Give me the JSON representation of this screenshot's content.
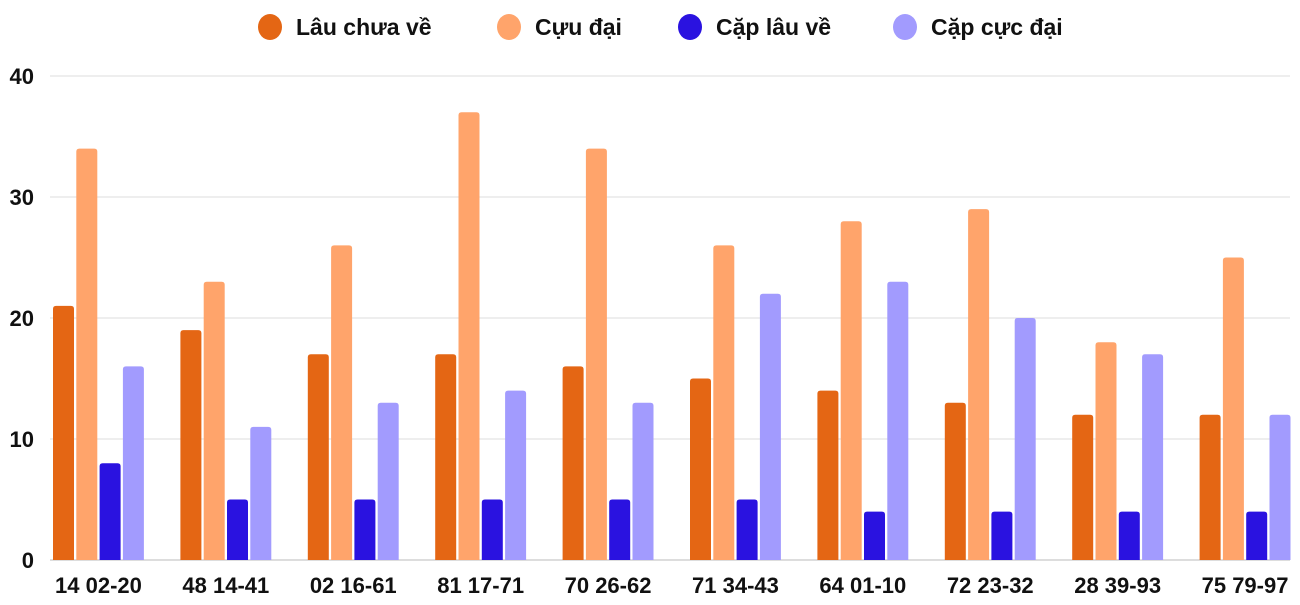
{
  "chart_data": {
    "type": "bar",
    "categories": [
      "14 02-20",
      "48 14-41",
      "02 16-61",
      "81 17-71",
      "70 26-62",
      "71 34-43",
      "64 01-10",
      "72 23-32",
      "28 39-93",
      "75 79-97"
    ],
    "series": [
      {
        "name": "Lâu chưa về",
        "color": "#E46614",
        "values": [
          21,
          19,
          17,
          17,
          16,
          15,
          14,
          13,
          12,
          12
        ]
      },
      {
        "name": "Cựu đại",
        "color": "#FFA46B",
        "values": [
          34,
          23,
          26,
          37,
          34,
          26,
          28,
          29,
          18,
          25
        ]
      },
      {
        "name": "Cặp lâu về",
        "color": "#2A12E0",
        "values": [
          8,
          5,
          5,
          5,
          5,
          5,
          4,
          4,
          4,
          4
        ]
      },
      {
        "name": "Cặp cực đại",
        "color": "#A29BFE",
        "values": [
          16,
          11,
          13,
          14,
          13,
          22,
          23,
          20,
          17,
          12
        ]
      }
    ],
    "yticks": [
      0,
      10,
      20,
      30,
      40
    ],
    "ylim": [
      0,
      40
    ],
    "grid": true,
    "legend": "top-center"
  }
}
